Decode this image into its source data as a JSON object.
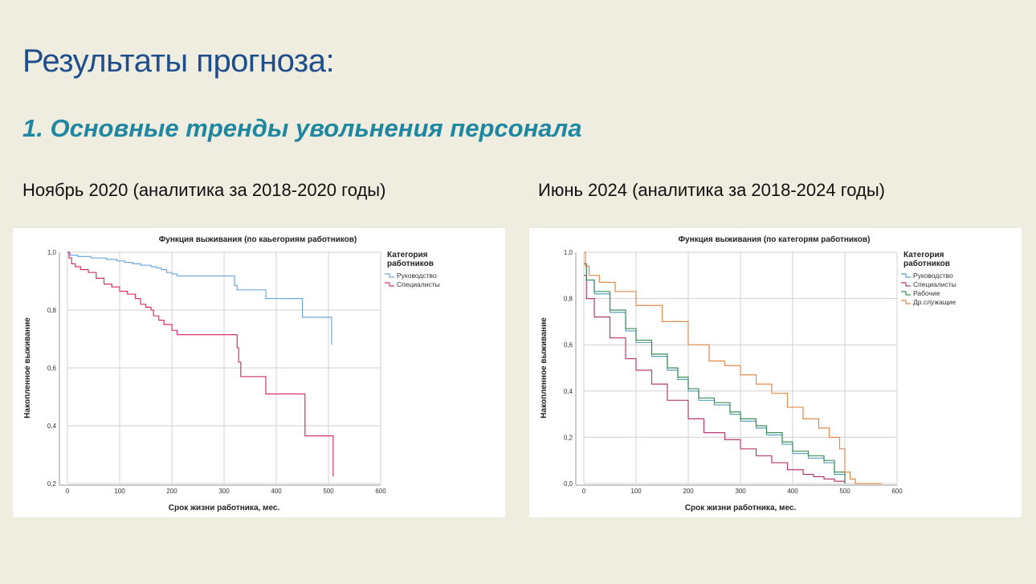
{
  "slide": {
    "title": "Результаты прогноза:",
    "subtitle": "1. Основные тренды увольнения персонала",
    "caption_left": "Ноябрь 2020 (аналитика за 2018-2020 годы)",
    "caption_right": "Июнь 2024 (аналитика за 2018-2024 годы)"
  },
  "chart_data": [
    {
      "type": "line",
      "step": true,
      "title": "Функция выживания (по каьегориям работников)",
      "xlabel": "Срок жизни работника, мес.",
      "ylabel": "Накопленное выживание",
      "xlim": [
        0,
        600
      ],
      "ylim": [
        0.2,
        1.0
      ],
      "xticks": [
        0,
        100,
        200,
        300,
        400,
        500,
        600
      ],
      "yticks": [
        0.2,
        0.4,
        0.6,
        0.8,
        1.0
      ],
      "ytick_labels": [
        "0,2",
        "0,4",
        "0,6",
        "0,8",
        "1,0"
      ],
      "grid": true,
      "legend_title": "Категория работников",
      "legend_title_lines": [
        "Категория",
        "работников"
      ],
      "legend_position": "top-right",
      "series": [
        {
          "name": "Руководство",
          "color": "#6fa8dc",
          "x": [
            0,
            5,
            20,
            45,
            75,
            95,
            110,
            125,
            140,
            160,
            170,
            180,
            190,
            200,
            210,
            320,
            325,
            330,
            380,
            450,
            505,
            506
          ],
          "y": [
            1.0,
            0.99,
            0.985,
            0.98,
            0.975,
            0.97,
            0.965,
            0.96,
            0.955,
            0.95,
            0.945,
            0.94,
            0.93,
            0.925,
            0.918,
            0.885,
            0.87,
            0.87,
            0.84,
            0.775,
            0.775,
            0.68
          ]
        },
        {
          "name": "Специалисты",
          "color": "#d6336c",
          "x": [
            0,
            3,
            8,
            15,
            25,
            40,
            55,
            70,
            85,
            100,
            115,
            130,
            140,
            150,
            160,
            165,
            175,
            185,
            200,
            210,
            300,
            325,
            328,
            332,
            380,
            450,
            455,
            508,
            509
          ],
          "y": [
            1.0,
            0.98,
            0.96,
            0.95,
            0.94,
            0.93,
            0.91,
            0.89,
            0.88,
            0.865,
            0.855,
            0.84,
            0.82,
            0.81,
            0.8,
            0.78,
            0.765,
            0.75,
            0.73,
            0.715,
            0.715,
            0.67,
            0.62,
            0.57,
            0.51,
            0.51,
            0.365,
            0.365,
            0.225
          ]
        }
      ]
    },
    {
      "type": "line",
      "step": true,
      "title": "Функция выживания (по категорям работников)",
      "xlabel": "Срок жизни работника, мес.",
      "ylabel": "Накопленное выживание",
      "xlim": [
        0,
        600
      ],
      "ylim": [
        0,
        1.0
      ],
      "xticks": [
        0,
        100,
        200,
        300,
        400,
        500,
        600
      ],
      "yticks": [
        0.0,
        0.2,
        0.4,
        0.6,
        0.8,
        1.0
      ],
      "ytick_labels": [
        "0,0",
        "0,2",
        "0,4",
        "0,6",
        "0,8",
        "1,0"
      ],
      "grid": true,
      "legend_title": "Категория работников",
      "legend_title_lines": [
        "Категория",
        "работников"
      ],
      "legend_position": "top-right",
      "series": [
        {
          "name": "Руководство",
          "color": "#5aa0b8",
          "x": [
            0,
            5,
            20,
            50,
            80,
            100,
            130,
            160,
            180,
            200,
            220,
            250,
            280,
            300,
            330,
            350,
            380,
            400,
            430,
            460,
            480,
            500
          ],
          "y": [
            0.95,
            0.88,
            0.82,
            0.74,
            0.66,
            0.61,
            0.55,
            0.49,
            0.45,
            0.4,
            0.36,
            0.34,
            0.3,
            0.27,
            0.24,
            0.21,
            0.17,
            0.13,
            0.11,
            0.09,
            0.04,
            0.0
          ]
        },
        {
          "name": "Специалисты",
          "color": "#b83a72",
          "x": [
            0,
            5,
            20,
            50,
            80,
            100,
            130,
            160,
            200,
            230,
            270,
            300,
            330,
            360,
            390,
            420,
            440,
            460,
            480,
            500
          ],
          "y": [
            0.9,
            0.8,
            0.72,
            0.63,
            0.54,
            0.49,
            0.43,
            0.36,
            0.28,
            0.22,
            0.19,
            0.15,
            0.12,
            0.09,
            0.06,
            0.04,
            0.03,
            0.02,
            0.01,
            0.0
          ]
        },
        {
          "name": "Рабочие",
          "color": "#3e8e5a",
          "x": [
            0,
            5,
            20,
            50,
            80,
            100,
            130,
            160,
            180,
            200,
            220,
            250,
            280,
            300,
            330,
            350,
            380,
            400,
            430,
            460,
            480,
            500
          ],
          "y": [
            0.95,
            0.88,
            0.83,
            0.75,
            0.67,
            0.62,
            0.56,
            0.5,
            0.46,
            0.41,
            0.37,
            0.35,
            0.31,
            0.28,
            0.25,
            0.22,
            0.18,
            0.14,
            0.12,
            0.1,
            0.05,
            0.0
          ]
        },
        {
          "name": "Др.служащие",
          "color": "#e08a4e",
          "x": [
            0,
            3,
            10,
            30,
            60,
            100,
            150,
            200,
            240,
            270,
            300,
            330,
            360,
            390,
            420,
            450,
            470,
            490,
            500,
            510,
            520,
            570
          ],
          "y": [
            1.0,
            0.94,
            0.9,
            0.87,
            0.83,
            0.77,
            0.7,
            0.6,
            0.53,
            0.51,
            0.47,
            0.43,
            0.39,
            0.33,
            0.28,
            0.24,
            0.2,
            0.15,
            0.05,
            0.02,
            0.0,
            0.0
          ]
        }
      ]
    }
  ]
}
